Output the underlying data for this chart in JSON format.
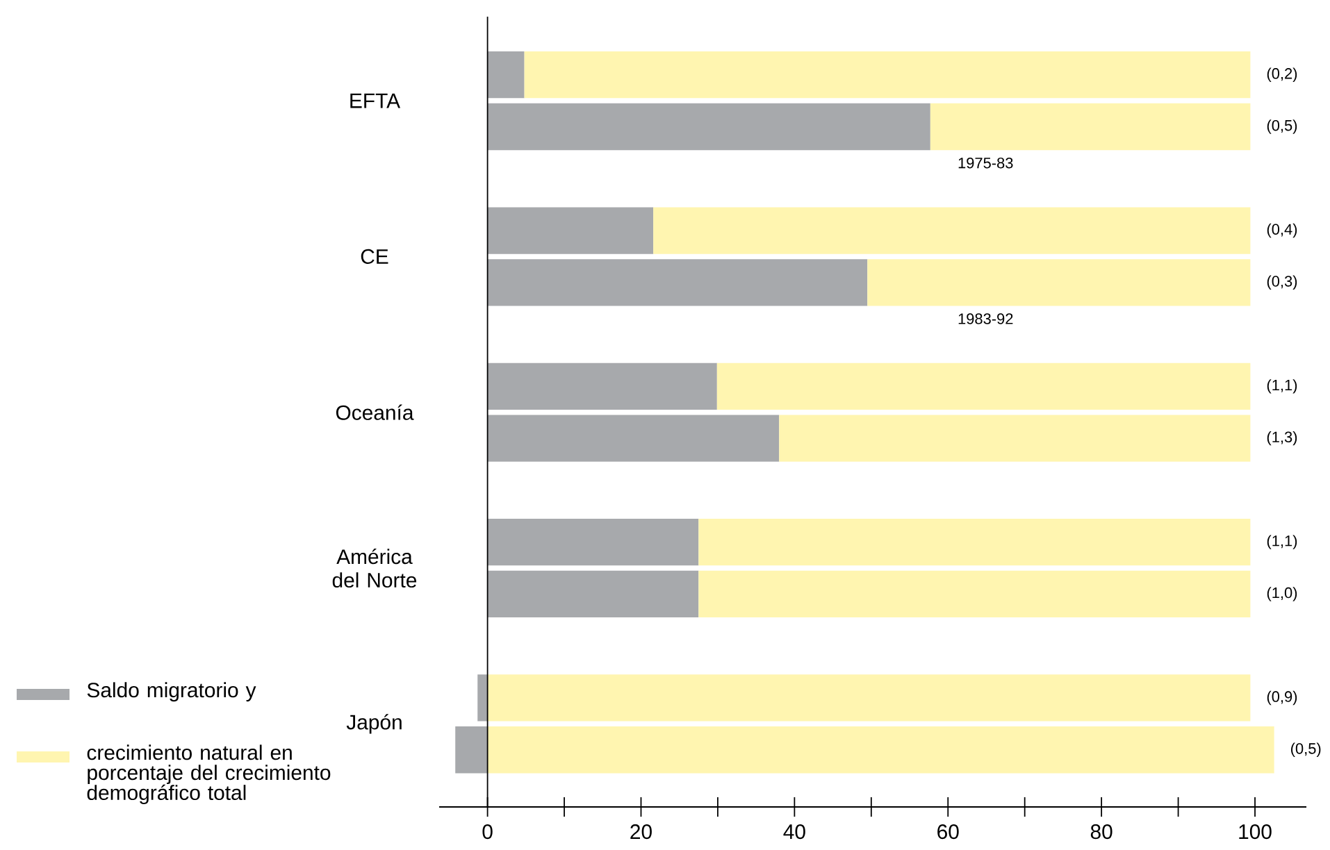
{
  "chart_data": {
    "type": "bar",
    "orientation": "horizontal",
    "stacked": true,
    "categories": [
      "EFTA",
      null,
      null,
      "CE",
      null,
      null,
      "Oceanía",
      null,
      null,
      "América del Norte",
      null,
      null,
      "Japón",
      null
    ],
    "series": [
      {
        "name": "Saldo migratorio y",
        "color": "#a7a9ac",
        "values": [
          4.8,
          57.7,
          null,
          21.6,
          49.5,
          null,
          29.9,
          38.0,
          null,
          27.5,
          27.5,
          null,
          -1.3,
          -4.2
        ]
      },
      {
        "name": "crecimiento natural en porcentaje del crecimiento demográfico total",
        "color": "#fff5b0",
        "values": [
          94.6,
          41.7,
          null,
          77.8,
          49.9,
          null,
          69.5,
          61.4,
          null,
          71.9,
          71.9,
          null,
          99.4,
          102.5
        ]
      }
    ],
    "annotations": [
      "(0,2)",
      "(0,5)",
      "(0,4)",
      "(0,3)",
      "(1,1)",
      "(1,3)",
      "(1,1)",
      "(1,0)",
      "(0,9)",
      "(0,5)",
      "1975-83",
      "1983-92"
    ],
    "ref_lines": [
      {
        "axis": "x",
        "value": 0
      }
    ],
    "xlim": [
      -6.3,
      106.7
    ],
    "xticks": [
      0,
      {
        "value": 10,
        "label": null
      },
      20,
      {
        "value": 30,
        "label": null
      },
      40,
      {
        "value": 50,
        "label": null
      },
      60,
      {
        "value": 70,
        "label": null
      },
      80,
      {
        "value": 90,
        "label": null
      },
      100
    ],
    "legend": "bottom left"
  }
}
